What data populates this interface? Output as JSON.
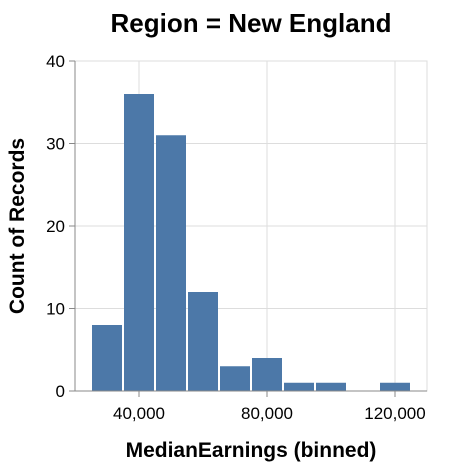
{
  "chart_data": {
    "type": "bar",
    "title": "Region = New England",
    "xlabel": "MedianEarnings (binned)",
    "ylabel": "Count of Records",
    "xlim": [
      20000,
      130000
    ],
    "ylim": [
      0,
      40
    ],
    "x_ticks": [
      40000,
      80000,
      120000
    ],
    "x_tick_labels": [
      "40,000",
      "80,000",
      "120,000"
    ],
    "y_ticks": [
      0,
      10,
      20,
      30,
      40
    ],
    "y_tick_labels": [
      "0",
      "10",
      "20",
      "30",
      "40"
    ],
    "bin_width": 10000,
    "bins": [
      {
        "start": 25000,
        "end": 35000,
        "count": 8
      },
      {
        "start": 35000,
        "end": 45000,
        "count": 36
      },
      {
        "start": 45000,
        "end": 55000,
        "count": 31
      },
      {
        "start": 55000,
        "end": 65000,
        "count": 12
      },
      {
        "start": 65000,
        "end": 75000,
        "count": 3
      },
      {
        "start": 75000,
        "end": 85000,
        "count": 4
      },
      {
        "start": 85000,
        "end": 95000,
        "count": 1
      },
      {
        "start": 95000,
        "end": 105000,
        "count": 1
      },
      {
        "start": 115000,
        "end": 125000,
        "count": 1
      }
    ],
    "grid": true,
    "colors": {
      "bar": "#4c78a8",
      "grid": "#dddddd",
      "axis": "#888888"
    }
  }
}
